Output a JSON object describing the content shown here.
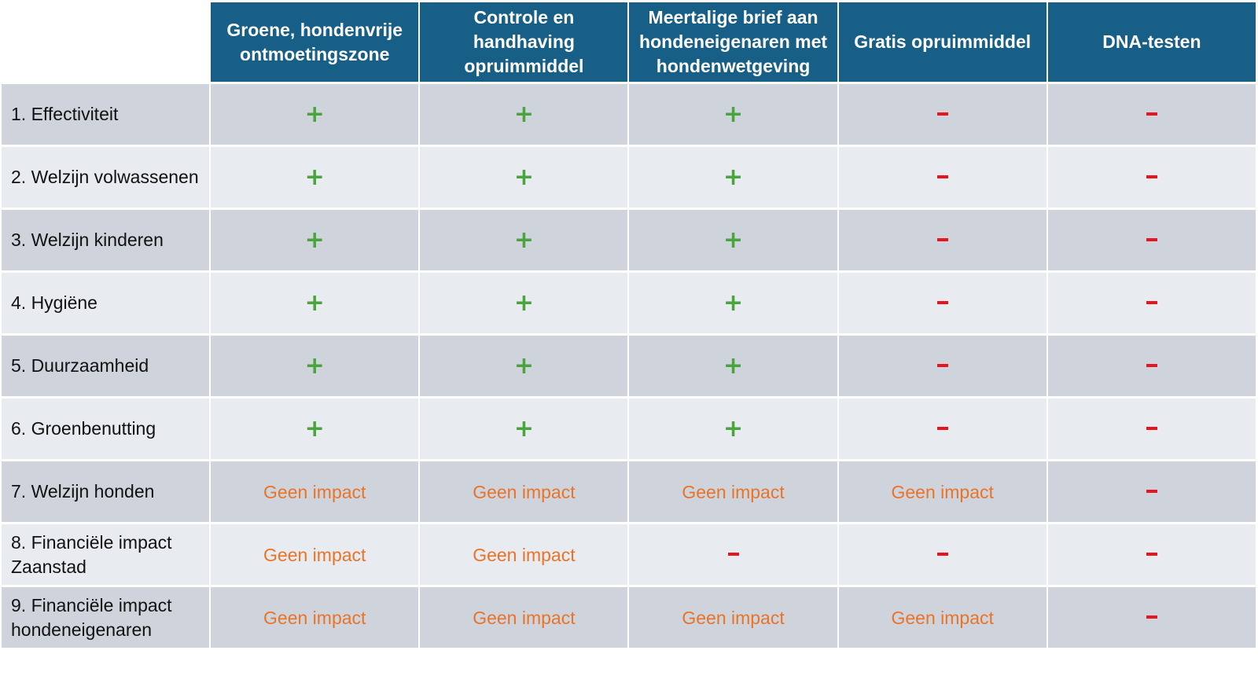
{
  "options": [
    "Groene, hondenvrije ontmoetingszone",
    "Controle en handhaving opruimmiddel",
    "Meertalige brief aan hondeneigenaren met hondenwetgeving",
    "Gratis opruimmiddel",
    "DNA-testen"
  ],
  "symbols": {
    "plus": "+",
    "minus": "–",
    "none": "Geen impact"
  },
  "colors": {
    "header": "#175f86",
    "plus": "#4aa33b",
    "minus": "#e8141e",
    "none": "#e8742a"
  },
  "rows": [
    {
      "criterion": "1. Effectiviteit",
      "scores": [
        "plus",
        "plus",
        "plus",
        "minus",
        "minus"
      ]
    },
    {
      "criterion": "2. Welzijn volwassenen",
      "scores": [
        "plus",
        "plus",
        "plus",
        "minus",
        "minus"
      ]
    },
    {
      "criterion": "3. Welzijn kinderen",
      "scores": [
        "plus",
        "plus",
        "plus",
        "minus",
        "minus"
      ]
    },
    {
      "criterion": "4. Hygiëne",
      "scores": [
        "plus",
        "plus",
        "plus",
        "minus",
        "minus"
      ]
    },
    {
      "criterion": "5. Duurzaamheid",
      "scores": [
        "plus",
        "plus",
        "plus",
        "minus",
        "minus"
      ]
    },
    {
      "criterion": "6. Groenbenutting",
      "scores": [
        "plus",
        "plus",
        "plus",
        "minus",
        "minus"
      ]
    },
    {
      "criterion": "7. Welzijn honden",
      "scores": [
        "none",
        "none",
        "none",
        "none",
        "minus"
      ]
    },
    {
      "criterion": "8. Financiële impact Zaanstad",
      "scores": [
        "none",
        "none",
        "minus",
        "minus",
        "minus"
      ]
    },
    {
      "criterion": "9. Financiële impact hondeneigenaren",
      "scores": [
        "none",
        "none",
        "none",
        "none",
        "minus"
      ]
    }
  ]
}
